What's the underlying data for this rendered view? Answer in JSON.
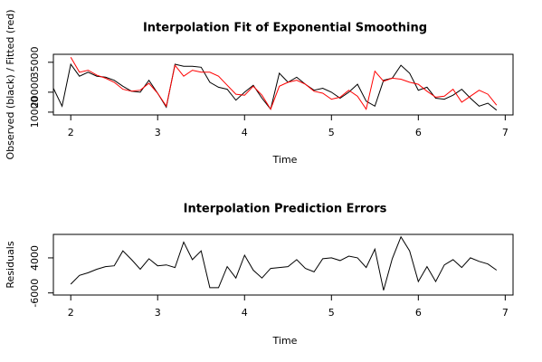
{
  "chart_data": [
    {
      "type": "line",
      "title": "Interpolation Fit of Exponential Smoothing",
      "x_label": "Time",
      "y_label": "Observed (black) / Fitted (red)",
      "x": [
        1.8,
        1.9,
        2.0,
        2.1,
        2.2,
        2.3,
        2.4,
        2.5,
        2.6,
        2.7,
        2.8,
        2.9,
        3.0,
        3.1,
        3.2,
        3.3,
        3.4,
        3.5,
        3.6,
        3.7,
        3.8,
        3.9,
        4.0,
        4.1,
        4.2,
        4.3,
        4.4,
        4.5,
        4.6,
        4.7,
        4.8,
        4.9,
        5.0,
        5.1,
        5.2,
        5.3,
        5.4,
        5.5,
        5.6,
        5.7,
        5.8,
        5.9,
        6.0,
        6.1,
        6.2,
        6.3,
        6.4,
        6.5,
        6.6,
        6.7,
        6.8,
        6.9
      ],
      "series": [
        {
          "color": "#000000",
          "values": [
            22000,
            13000,
            34000,
            28000,
            30000,
            28000,
            27500,
            26000,
            23000,
            20500,
            20000,
            26000,
            19500,
            12500,
            34000,
            33000,
            33000,
            32500,
            25000,
            22500,
            21500,
            16000,
            20000,
            23500,
            17000,
            11500,
            29500,
            25000,
            27500,
            24000,
            21000,
            22000,
            20000,
            17000,
            20000,
            24000,
            15500,
            13000,
            26000,
            27000,
            33500,
            29500,
            21000,
            22500,
            17000,
            16500,
            18500,
            21500,
            17000,
            13000,
            14500,
            11000
          ]
        },
        {
          "color": "#ff0000",
          "values": [
            null,
            null,
            37500,
            30000,
            31000,
            28500,
            27000,
            25000,
            21500,
            20500,
            21000,
            24500,
            19500,
            13000,
            33500,
            28000,
            31000,
            30000,
            30000,
            28000,
            23500,
            19000,
            18500,
            23000,
            18500,
            11500,
            23000,
            25000,
            26000,
            24000,
            20500,
            19500,
            16500,
            17500,
            21000,
            18000,
            11500,
            30500,
            25500,
            27000,
            26500,
            25000,
            24000,
            20500,
            17500,
            18000,
            21500,
            15000,
            18000,
            21000,
            19000,
            13500
          ]
        }
      ],
      "xlim": [
        1.8,
        7.09
      ],
      "xticks": [
        2,
        3,
        4,
        5,
        6,
        7
      ],
      "ylim": [
        8600,
        39000
      ],
      "yticks": [
        10000,
        20000,
        35000
      ]
    },
    {
      "type": "line",
      "title": "Interpolation Prediction Errors",
      "x_label": "Time",
      "y_label": "Residuals",
      "x": [
        2.0,
        2.1,
        2.2,
        2.3,
        2.4,
        2.5,
        2.6,
        2.7,
        2.8,
        2.9,
        3.0,
        3.1,
        3.2,
        3.3,
        3.4,
        3.5,
        3.6,
        3.7,
        3.8,
        3.9,
        4.0,
        4.1,
        4.2,
        4.3,
        4.4,
        4.5,
        4.6,
        4.7,
        4.8,
        4.9,
        5.0,
        5.1,
        5.2,
        5.3,
        5.4,
        5.5,
        5.6,
        5.7,
        5.8,
        5.9,
        6.0,
        6.1,
        6.2,
        6.3,
        6.4,
        6.5,
        6.6,
        6.7,
        6.8,
        6.9
      ],
      "series": [
        {
          "color": "#000000",
          "values": [
            -3500,
            -1000,
            -250,
            750,
            1500,
            1750,
            6000,
            3500,
            750,
            3750,
            1750,
            2000,
            1250,
            8500,
            3500,
            6000,
            -4500,
            -4500,
            1500,
            -1750,
            4750,
            500,
            -1750,
            1000,
            1250,
            1500,
            3500,
            1000,
            0,
            3750,
            4000,
            3250,
            4500,
            4000,
            1250,
            6500,
            -5250,
            3750,
            10000,
            6000,
            -2750,
            1500,
            -2750,
            2000,
            3500,
            1250,
            4000,
            3000,
            2250,
            500
          ]
        }
      ],
      "xlim": [
        1.8,
        7.09
      ],
      "xticks": [
        2,
        3,
        4,
        5,
        6,
        7
      ],
      "ylim": [
        -6600,
        10700
      ],
      "yticks": [
        -6000,
        4000
      ]
    }
  ]
}
